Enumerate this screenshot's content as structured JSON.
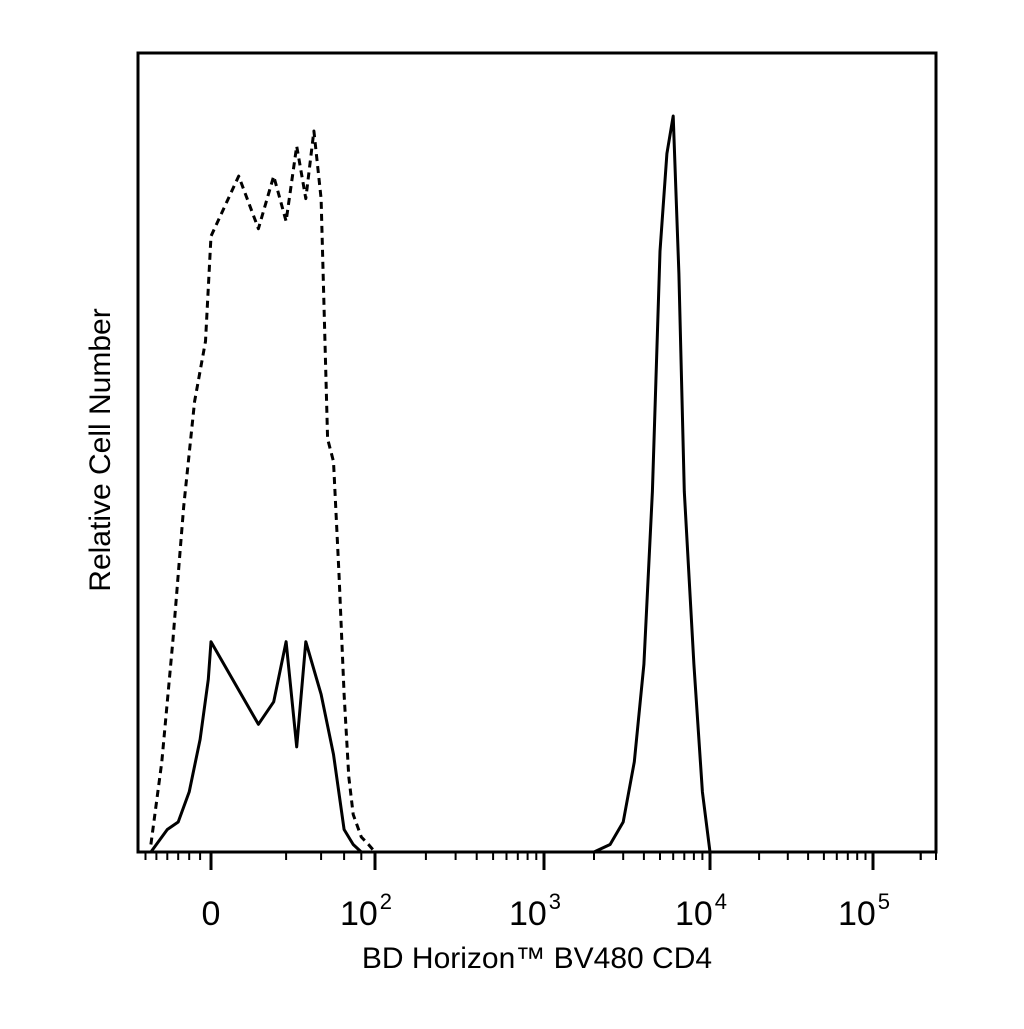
{
  "chart_data": {
    "type": "line",
    "xlabel": "BD Horizon™ BV480 CD4",
    "ylabel": "Relative Cell Number",
    "x_scale": "biexponential",
    "xlim": [
      -130,
      250000
    ],
    "ylim": [
      0,
      100
    ],
    "grid": false,
    "legend": "none",
    "x_ticks": [
      {
        "value": 0,
        "base": "0",
        "exp": ""
      },
      {
        "value": 100,
        "base": "10",
        "exp": "2"
      },
      {
        "value": 1000,
        "base": "10",
        "exp": "3"
      },
      {
        "value": 10000,
        "base": "10",
        "exp": "4"
      },
      {
        "value": 100000,
        "base": "10",
        "exp": "5"
      }
    ],
    "series": [
      {
        "line_style": "dashed",
        "x": [
          -110,
          -90,
          -70,
          -50,
          -30,
          -10,
          0,
          5,
          10,
          15,
          20,
          25,
          30,
          35,
          40,
          45,
          50,
          55,
          60,
          65,
          70,
          80,
          90,
          100,
          120
        ],
        "y": [
          1,
          12,
          28,
          46,
          60,
          68,
          82,
          90,
          83,
          90,
          84,
          94,
          87,
          96,
          87,
          55,
          52,
          37,
          21,
          10,
          5,
          2,
          1,
          0,
          0
        ]
      },
      {
        "line_style": "solid",
        "x": [
          -110,
          -80,
          -60,
          -40,
          -20,
          -5,
          0,
          10,
          15,
          20,
          25,
          30,
          40,
          50,
          60,
          70,
          80,
          100,
          2000,
          2500,
          3000,
          3500,
          4000,
          4500,
          5000,
          5500,
          6000,
          6500,
          7000,
          8000,
          9000,
          10000,
          11000
        ],
        "y": [
          0,
          3,
          4,
          8,
          15,
          23,
          28,
          17,
          20,
          28,
          14,
          28,
          21,
          13,
          3,
          1,
          0,
          0,
          0,
          1,
          4,
          12,
          25,
          48,
          80,
          93,
          98,
          77,
          48,
          25,
          8,
          0,
          0
        ]
      }
    ]
  }
}
